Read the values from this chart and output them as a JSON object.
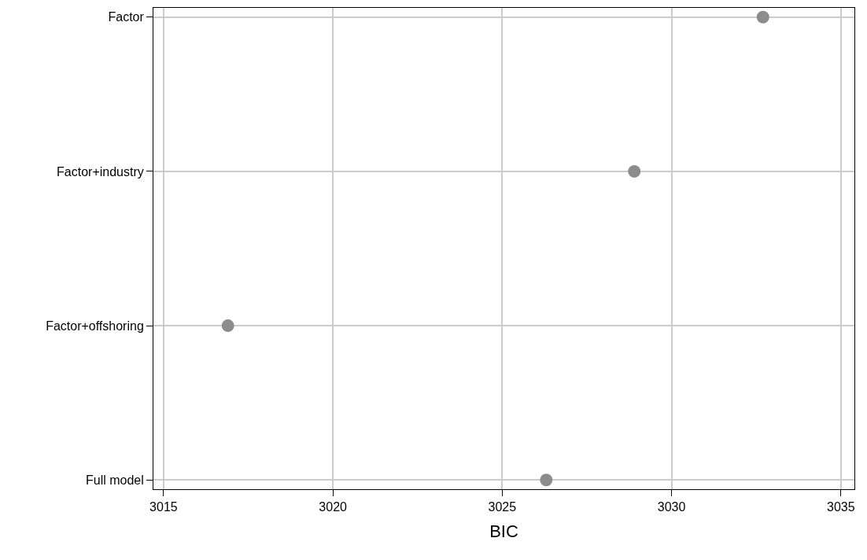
{
  "chart_data": {
    "type": "scatter",
    "orientation": "horizontal",
    "xlabel": "BIC",
    "categories": [
      "Factor",
      "Factor+industry",
      "Factor+offshoring",
      "Full model"
    ],
    "values": [
      3032.7,
      3028.9,
      3016.9,
      3026.3
    ],
    "color": "#8c8c8c",
    "marker": "circle",
    "xlim": [
      3014.7,
      3035.4
    ],
    "xticks": [
      3015,
      3020,
      3025,
      3030,
      3035
    ],
    "grid": true,
    "legend": false
  }
}
